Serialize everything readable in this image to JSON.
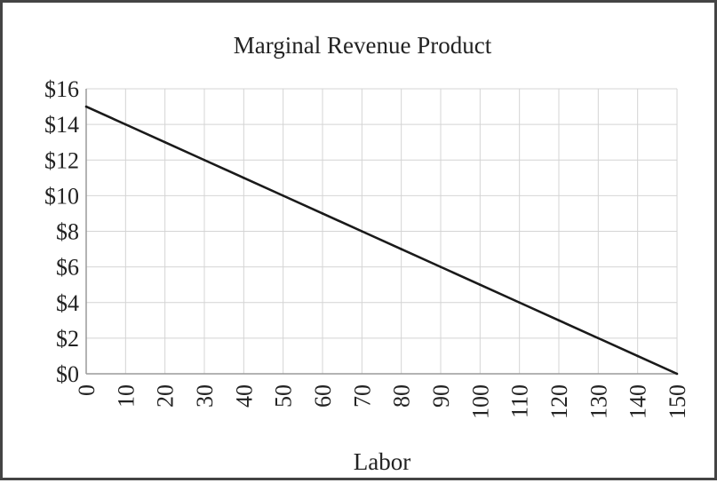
{
  "chart_data": {
    "type": "line",
    "title": "Marginal Revenue Product",
    "xlabel": "Labor",
    "ylabel": "",
    "x": [
      0,
      10,
      20,
      30,
      40,
      50,
      60,
      70,
      80,
      90,
      100,
      110,
      120,
      130,
      140,
      150
    ],
    "series": [
      {
        "values": [
          15,
          14,
          13,
          12,
          11,
          10,
          9,
          8,
          7,
          6,
          5,
          4,
          3,
          2,
          1,
          0
        ]
      }
    ],
    "xlim": [
      0,
      150
    ],
    "ylim": [
      0,
      16
    ],
    "xticks": [
      0,
      10,
      20,
      30,
      40,
      50,
      60,
      70,
      80,
      90,
      100,
      110,
      120,
      130,
      140,
      150
    ],
    "xtick_labels": [
      "0",
      "10",
      "20",
      "30",
      "40",
      "50",
      "60",
      "70",
      "80",
      "90",
      "100",
      "110",
      "120",
      "130",
      "140",
      "150"
    ],
    "yticks": [
      0,
      2,
      4,
      6,
      8,
      10,
      12,
      14,
      16
    ],
    "ytick_labels": [
      "$0",
      "$2",
      "$4",
      "$6",
      "$8",
      "$10",
      "$12",
      "$14",
      "$16"
    ],
    "grid": true,
    "legend": "none",
    "colors": {
      "line": "#1a1a1a",
      "grid": "#d4d4d4",
      "axis": "#9a9a9a"
    }
  }
}
